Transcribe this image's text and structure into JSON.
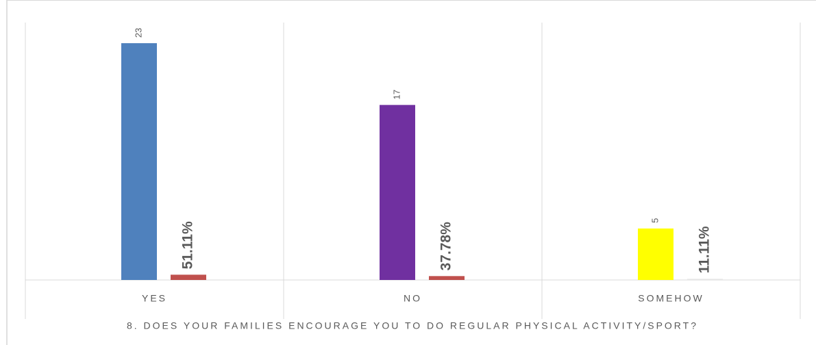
{
  "chart_data": {
    "type": "bar",
    "x_label": "8. DOES YOUR FAMILIES ENCOURAGE YOU TO DO REGULAR PHYSICAL ACTIVITY/SPORT?",
    "categories": [
      "YES",
      "NO",
      "SOMEHOW"
    ],
    "series": [
      {
        "colors": [
          "#4f81bd",
          "#7030a0",
          "#ffff00"
        ],
        "values": [
          23,
          17,
          5
        ]
      },
      {
        "colors": [
          "#c0504d",
          "#c0504d",
          "#e6e6e6"
        ],
        "values": [
          0.5111,
          0.3778,
          0.1111
        ],
        "value_labels": [
          "51.11%",
          "37.78%",
          "11.11%"
        ]
      }
    ],
    "ylim": [
      0,
      25
    ]
  }
}
